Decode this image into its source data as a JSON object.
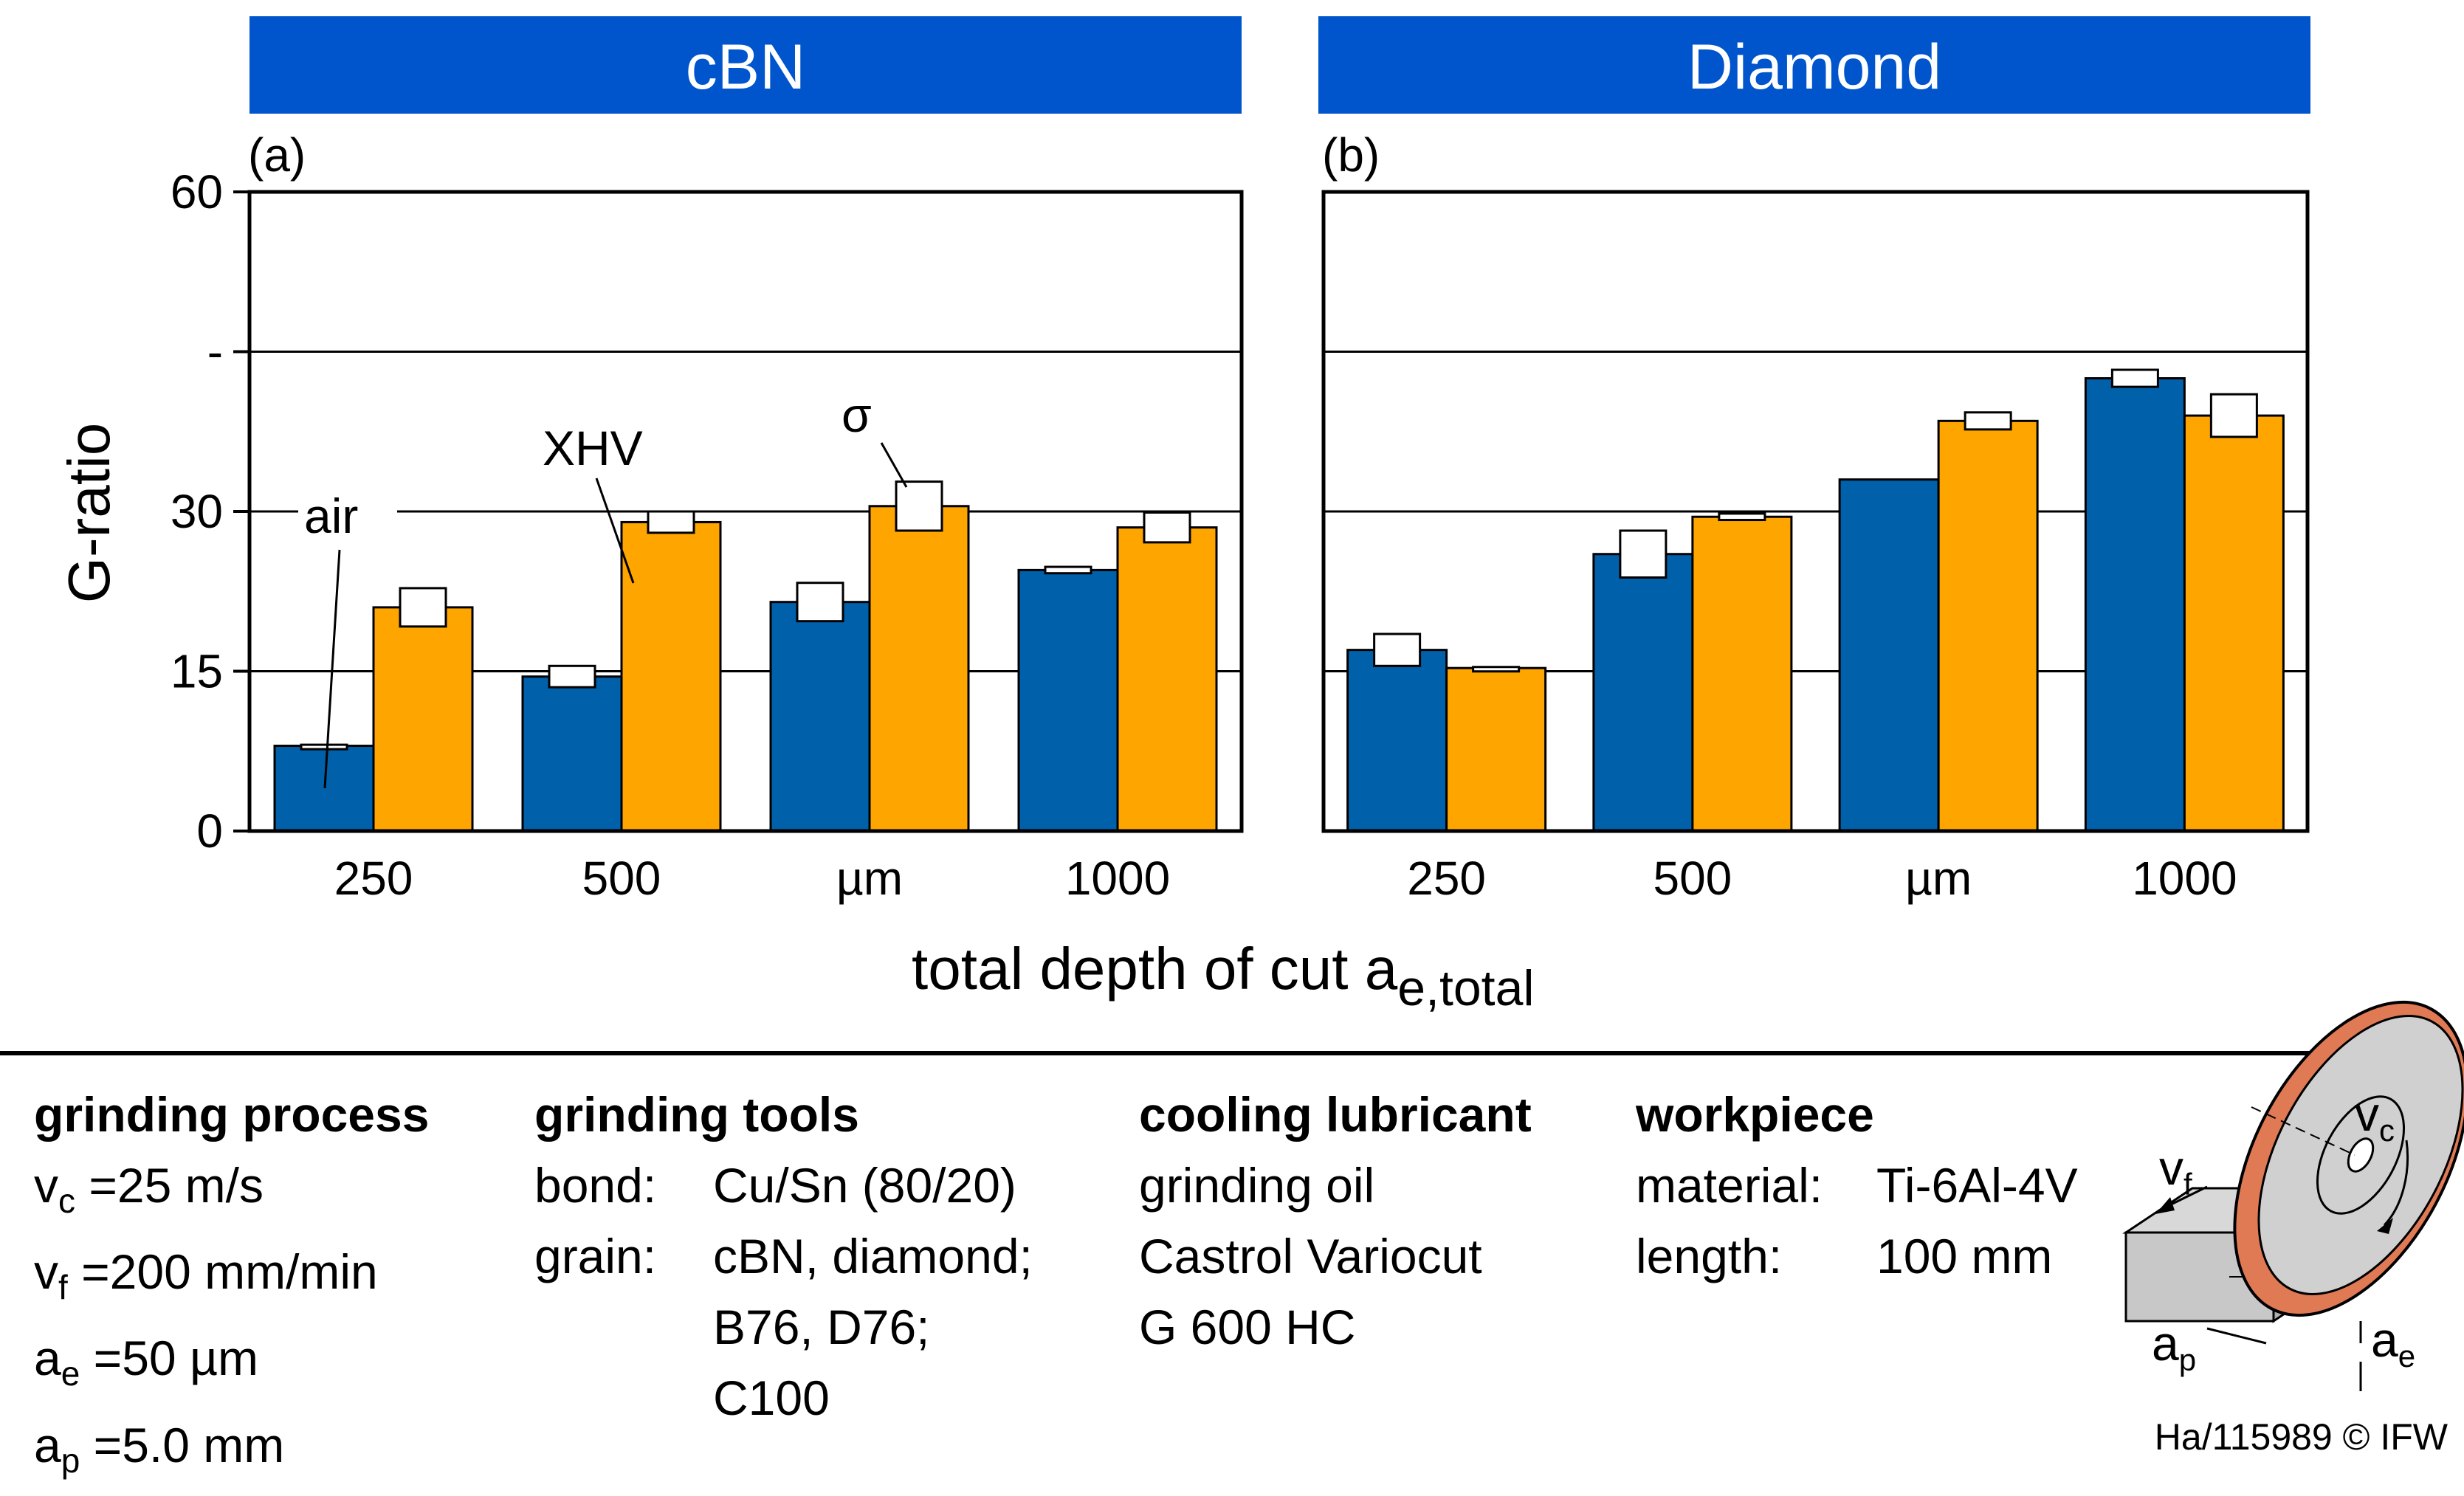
{
  "colors": {
    "header_blue": "#0055CC",
    "bar_blue": "#0060AA",
    "bar_orange": "#FFA500",
    "wheel_rim": "#E07A55"
  },
  "header_left": "cBN",
  "header_right": "Diamond",
  "chart_data": [
    {
      "type": "bar",
      "panel_label": "(a)",
      "title": "cBN",
      "ylabel": "G-ratio",
      "xlabel": "total depth of cut a",
      "xlabel_sub": "e,total",
      "ylim": [
        0,
        60
      ],
      "y_ticks": [
        "0",
        "15",
        "30",
        "-",
        "60"
      ],
      "y_tick_values": [
        0,
        15,
        30,
        45,
        60
      ],
      "grid": true,
      "categories": [
        "250",
        "500",
        "µm",
        "1000"
      ],
      "series": [
        {
          "name": "air",
          "values": [
            8,
            14.5,
            21.5,
            24.5
          ],
          "err": [
            0.1,
            1.0,
            1.8,
            0.3
          ]
        },
        {
          "name": "XHV",
          "values": [
            21,
            29,
            30.5,
            28.5
          ],
          "err": [
            1.8,
            1.0,
            2.3,
            1.4
          ]
        }
      ],
      "annotations": [
        "air",
        "XHV",
        "σ"
      ]
    },
    {
      "type": "bar",
      "panel_label": "(b)",
      "title": "Diamond",
      "ylim": [
        0,
        60
      ],
      "grid": true,
      "categories": [
        "250",
        "500",
        "µm",
        "1000"
      ],
      "series": [
        {
          "name": "air",
          "values": [
            17,
            26,
            33,
            42.5
          ],
          "err": [
            1.5,
            2.2,
            0,
            0.8
          ]
        },
        {
          "name": "XHV",
          "values": [
            15.3,
            29.5,
            38.5,
            39
          ],
          "err": [
            0.1,
            0.3,
            0.8,
            2.0
          ]
        }
      ]
    }
  ],
  "info": {
    "process": {
      "heading": "grinding process",
      "rows": [
        {
          "sym": "v",
          "sub": "c",
          "val": "=25 m/s"
        },
        {
          "sym": "v",
          "sub": "f",
          "val": "=200 mm/min"
        },
        {
          "sym": "a",
          "sub": "e",
          "val": "=50 µm"
        },
        {
          "sym": "a",
          "sub": "p",
          "val": "=5.0 mm"
        }
      ]
    },
    "tools": {
      "heading": "grinding tools",
      "bond_label": "bond:",
      "bond_value": "Cu/Sn (80/20)",
      "grain_label": "grain:",
      "grain_lines": [
        "cBN, diamond;",
        "B76, D76;",
        "C100"
      ]
    },
    "coolant": {
      "heading": "cooling lubricant",
      "lines": [
        "grinding oil",
        "Castrol Variocut",
        "G 600 HC"
      ]
    },
    "workpiece": {
      "heading": "workpiece",
      "material_label": "material:",
      "material_value": "Ti-6Al-4V",
      "length_label": "length:",
      "length_value": "100 mm"
    }
  },
  "diagram": {
    "vc": "v",
    "vc_sub": "c",
    "vf": "v",
    "vf_sub": "f",
    "ap": "a",
    "ap_sub": "p",
    "ae": "a",
    "ae_sub": "e"
  },
  "credit": "Ha/115989 © IFW"
}
